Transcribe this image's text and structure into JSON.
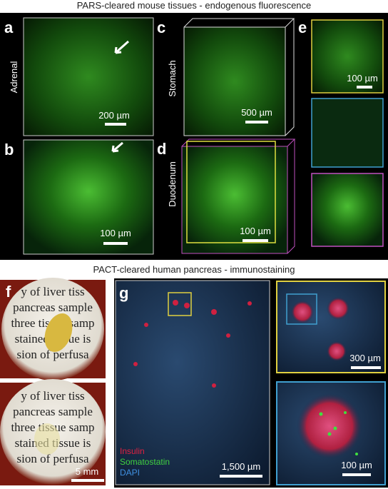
{
  "header": {
    "top_title": "PARS-cleared mouse tissues - endogenous fluorescence",
    "bottom_title": "PACT-cleared human pancreas - immunostaining"
  },
  "panels": {
    "a": {
      "letter": "a",
      "tissue": "Adrenal",
      "scale": "200 µm"
    },
    "b": {
      "letter": "b",
      "scale": "100 µm"
    },
    "c": {
      "letter": "c",
      "tissue": "Stomach",
      "scale": "500 µm"
    },
    "d": {
      "letter": "d",
      "tissue": "Duodenum",
      "scale": "100 µm"
    },
    "e": {
      "letter": "e",
      "scale": "100 µm"
    },
    "f": {
      "letter": "f",
      "text_lines": [
        "y of liver tiss",
        "pancreas sample",
        "three tissue samp",
        "stained tissue is",
        "sion of perfusa"
      ],
      "scale": "5 mm"
    },
    "g": {
      "letter": "g",
      "legend": [
        "Insulin",
        "Somatostatin",
        "DAPI"
      ],
      "scale": "1,500 µm",
      "inset_scale": "300 µm",
      "zoom_scale": "100 µm"
    }
  }
}
